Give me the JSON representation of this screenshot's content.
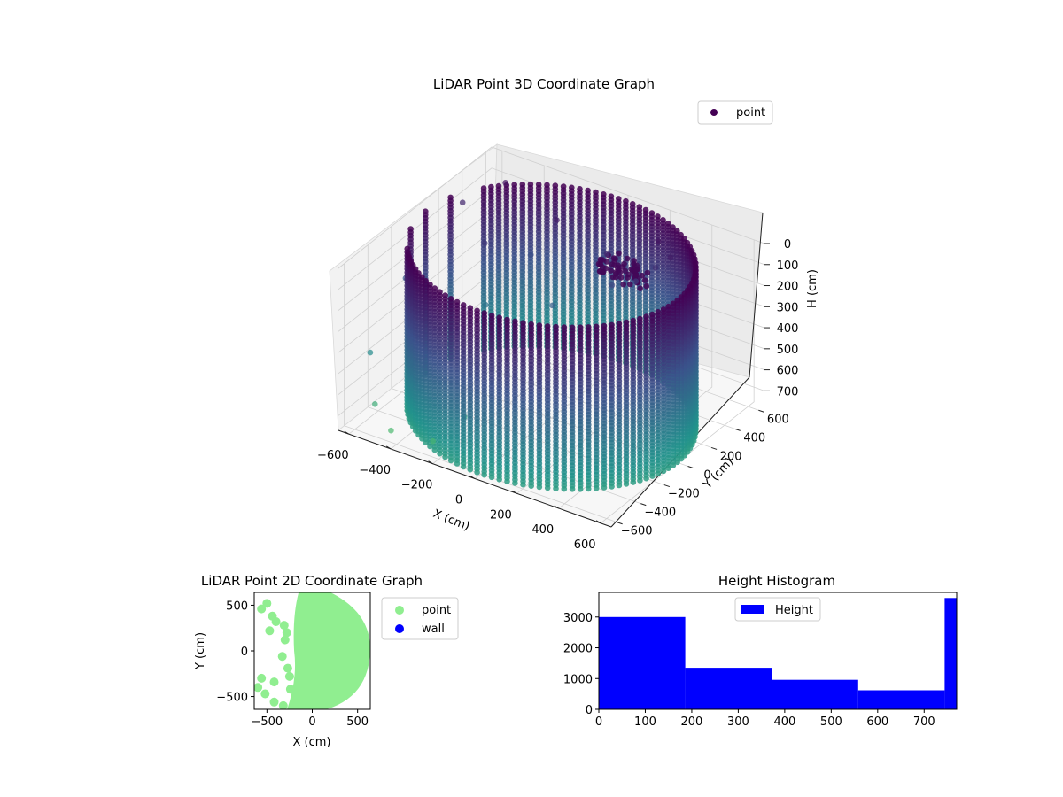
{
  "chart_data": [
    {
      "type": "scatter",
      "title": "LiDAR Point 3D Coordinate Graph",
      "xlabel": "X (cm)",
      "ylabel": "Y (cm)",
      "zlabel": "H (cm)",
      "xticks": [
        "−600",
        "−400",
        "−200",
        "0",
        "200",
        "400",
        "600"
      ],
      "yticks": [
        "−600",
        "−400",
        "−200",
        "0",
        "200",
        "400",
        "600"
      ],
      "zticks": [
        "0",
        "100",
        "200",
        "300",
        "400",
        "500",
        "600",
        "700"
      ],
      "xlim": [
        -650,
        650
      ],
      "ylim": [
        -650,
        650
      ],
      "zlim": [
        0,
        770
      ],
      "z_inverted": true,
      "grid": true,
      "legend": {
        "placement": "top-right",
        "entries": [
          "point"
        ]
      },
      "colormap": "viridis",
      "series": [
        {
          "name": "point",
          "description_points": "cylindrical wall of radius ~600 cm from H 0 to ~770 cm, plus interior/outlier points",
          "wall": {
            "center": [
              0,
              0
            ],
            "radius": 600,
            "h_range": [
              0,
              770
            ],
            "angle_gap_deg": [
              150,
              215
            ]
          },
          "extra_points": [
            [
              -620,
              350,
              120
            ],
            [
              -650,
              -80,
              300
            ],
            [
              -640,
              80,
              400
            ],
            [
              -500,
              500,
              50
            ],
            [
              -430,
              200,
              180
            ],
            [
              -380,
              120,
              420
            ],
            [
              -300,
              360,
              260
            ],
            [
              -210,
              420,
              90
            ],
            [
              -650,
              -380,
              520
            ],
            [
              -560,
              -500,
              680
            ],
            [
              -450,
              -560,
              740
            ],
            [
              -250,
              -560,
              720
            ],
            [
              -150,
              -470,
              610
            ],
            [
              120,
              300,
              230
            ],
            [
              50,
              380,
              140
            ],
            [
              -80,
              150,
              330
            ],
            [
              320,
              440,
              90
            ],
            [
              260,
              420,
              150
            ],
            [
              200,
              360,
              210
            ],
            [
              240,
              480,
              60
            ]
          ]
        }
      ]
    },
    {
      "type": "scatter",
      "title": "LiDAR Point 2D Coordinate Graph",
      "xlabel": "X (cm)",
      "ylabel": "Y (cm)",
      "xticks": [
        "−500",
        "0",
        "500"
      ],
      "yticks": [
        "−500",
        "0",
        "500"
      ],
      "xlim": [
        -640,
        640
      ],
      "ylim": [
        -640,
        640
      ],
      "legend": {
        "placement": "outside-right",
        "entries": [
          "point",
          "wall"
        ]
      },
      "series": [
        {
          "name": "point",
          "color": "#90ee90"
        },
        {
          "name": "wall",
          "color": "#0000ff"
        }
      ],
      "point_blobs": [
        [
          -560,
          460
        ],
        [
          -500,
          520
        ],
        [
          -440,
          380
        ],
        [
          -400,
          320
        ],
        [
          -470,
          220
        ],
        [
          -310,
          280
        ],
        [
          -280,
          200
        ],
        [
          -300,
          120
        ],
        [
          -330,
          -60
        ],
        [
          -270,
          -190
        ],
        [
          -250,
          -280
        ],
        [
          -420,
          -340
        ],
        [
          -560,
          -300
        ],
        [
          -600,
          -400
        ],
        [
          -520,
          -470
        ],
        [
          -420,
          -560
        ],
        [
          -320,
          -600
        ],
        [
          -240,
          -420
        ]
      ]
    },
    {
      "type": "bar",
      "title": "Height Histogram",
      "xlabel": "",
      "ylabel": "",
      "xticks": [
        "0",
        "100",
        "200",
        "300",
        "400",
        "500",
        "600",
        "700"
      ],
      "yticks": [
        "0",
        "1000",
        "2000",
        "3000"
      ],
      "xlim": [
        0,
        770
      ],
      "ylim": [
        0,
        3800
      ],
      "bin_edges": [
        0,
        186,
        372,
        558,
        744,
        770
      ],
      "values": [
        3000,
        1350,
        960,
        620,
        3620
      ],
      "color": "#0000ff",
      "legend": {
        "placement": "upper-center",
        "entries": [
          "Height"
        ]
      },
      "series": [
        {
          "name": "Height"
        }
      ]
    }
  ]
}
